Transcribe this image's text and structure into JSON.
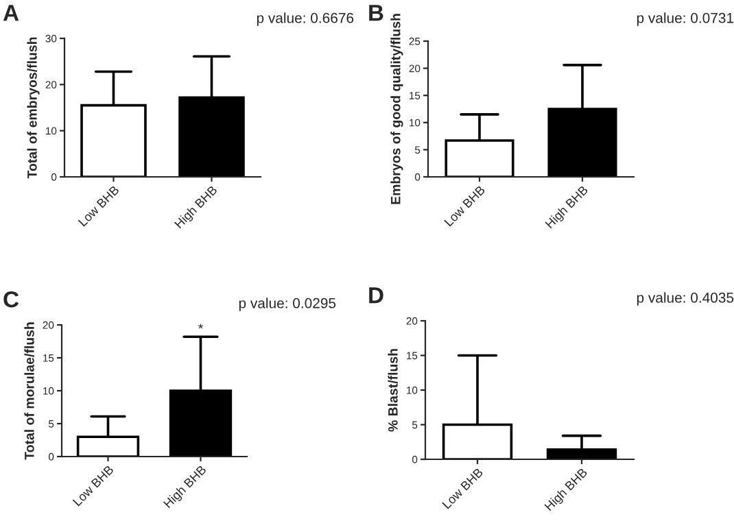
{
  "chart_data": [
    {
      "type": "bar",
      "title": "A",
      "subtitle": "p value: 0.6676",
      "ylabel": "Total of embryos/flush",
      "categories": [
        "Low BHB",
        "High BHB"
      ],
      "values": [
        15.5,
        17.2
      ],
      "colors": [
        "#ffffff",
        "#000000"
      ],
      "errors": [
        [
          15.5,
          22.8
        ],
        [
          17.2,
          26.1
        ]
      ],
      "ylim": [
        0,
        30
      ],
      "yticks": [
        0,
        10,
        20,
        30
      ],
      "grid": false
    },
    {
      "type": "bar",
      "title": "B",
      "subtitle": "p value: 0.0731",
      "ylabel": "Embryos of good quality/flush",
      "categories": [
        "Low BHB",
        "High BHB"
      ],
      "values": [
        6.7,
        12.5
      ],
      "colors": [
        "#ffffff",
        "#000000"
      ],
      "errors": [
        [
          6.7,
          11.5
        ],
        [
          12.5,
          20.6
        ]
      ],
      "ylim": [
        0,
        25
      ],
      "yticks": [
        0,
        5,
        10,
        15,
        20,
        25
      ],
      "grid": false
    },
    {
      "type": "bar",
      "title": "C",
      "subtitle": "p value: 0.0295",
      "ylabel": "Total of morulae/flush",
      "categories": [
        "Low BHB",
        "High BHB"
      ],
      "values": [
        3.0,
        10.0
      ],
      "colors": [
        "#ffffff",
        "#000000"
      ],
      "errors": [
        [
          3.0,
          6.1
        ],
        [
          10.0,
          18.2
        ]
      ],
      "ylim": [
        0,
        20
      ],
      "yticks": [
        0,
        5,
        10,
        15,
        20
      ],
      "annotations": [
        {
          "text": "*",
          "x": "High BHB",
          "y": 18.2
        }
      ],
      "grid": false
    },
    {
      "type": "bar",
      "title": "D",
      "subtitle": "p value: 0.4035",
      "ylabel": "% Blast/flush",
      "categories": [
        "Low BHB",
        "High BHB"
      ],
      "values": [
        5.0,
        1.4
      ],
      "colors": [
        "#ffffff",
        "#000000"
      ],
      "errors": [
        [
          5.0,
          15.0
        ],
        [
          1.4,
          3.4
        ]
      ],
      "ylim": [
        0,
        20
      ],
      "yticks": [
        0,
        5,
        10,
        15,
        20
      ],
      "grid": false
    }
  ]
}
